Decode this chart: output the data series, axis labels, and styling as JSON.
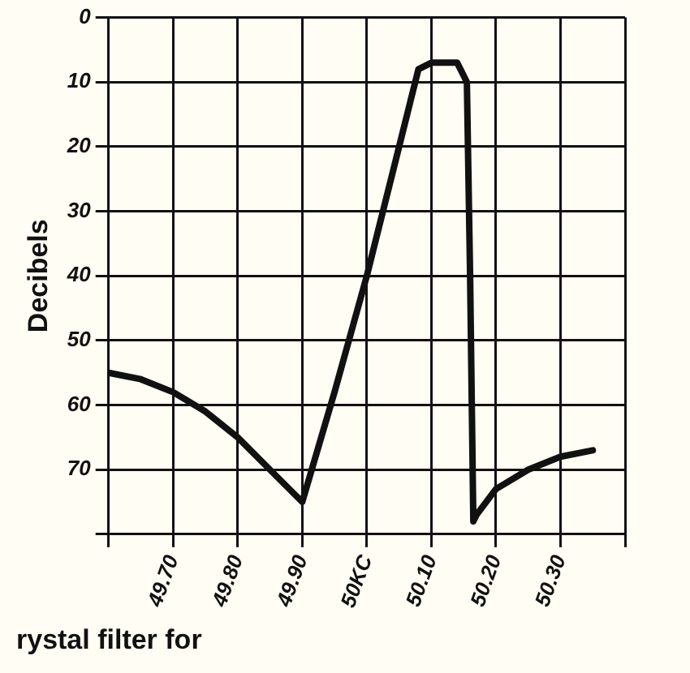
{
  "chart_data": {
    "type": "line",
    "ylabel": "Decibels",
    "x": [
      49.6,
      49.65,
      49.7,
      49.75,
      49.8,
      49.85,
      49.9,
      49.95,
      50.0,
      50.05,
      50.08,
      50.1,
      50.14,
      50.155,
      50.16,
      50.165,
      50.17,
      50.2,
      50.25,
      50.3,
      50.35
    ],
    "series": [
      {
        "color": "#111111",
        "values": [
          55,
          56,
          58,
          61,
          65,
          70,
          75,
          58,
          40,
          20,
          8,
          7,
          7,
          10,
          40,
          78,
          77,
          73,
          70,
          68,
          67
        ]
      }
    ],
    "xlim": [
      49.6,
      50.4
    ],
    "xticks": [
      {
        "value": 49.6,
        "label": null
      },
      {
        "value": 49.7,
        "label": "49.70"
      },
      {
        "value": 49.8,
        "label": "49.80"
      },
      {
        "value": 49.9,
        "label": "49.90"
      },
      {
        "value": 50.0,
        "label": "50KC"
      },
      {
        "value": 50.1,
        "label": "50.10"
      },
      {
        "value": 50.2,
        "label": "50.20"
      },
      {
        "value": 50.3,
        "label": "50.30"
      },
      {
        "value": 50.4,
        "label": null
      }
    ],
    "ylim": [
      80,
      0
    ],
    "yticks": [
      0,
      10,
      20,
      30,
      40,
      50,
      60,
      70,
      {
        "value": 80,
        "label": null
      }
    ],
    "grid": true,
    "marker": "none",
    "line_style": "solid",
    "annotations": [
      "rystal filter for"
    ]
  }
}
